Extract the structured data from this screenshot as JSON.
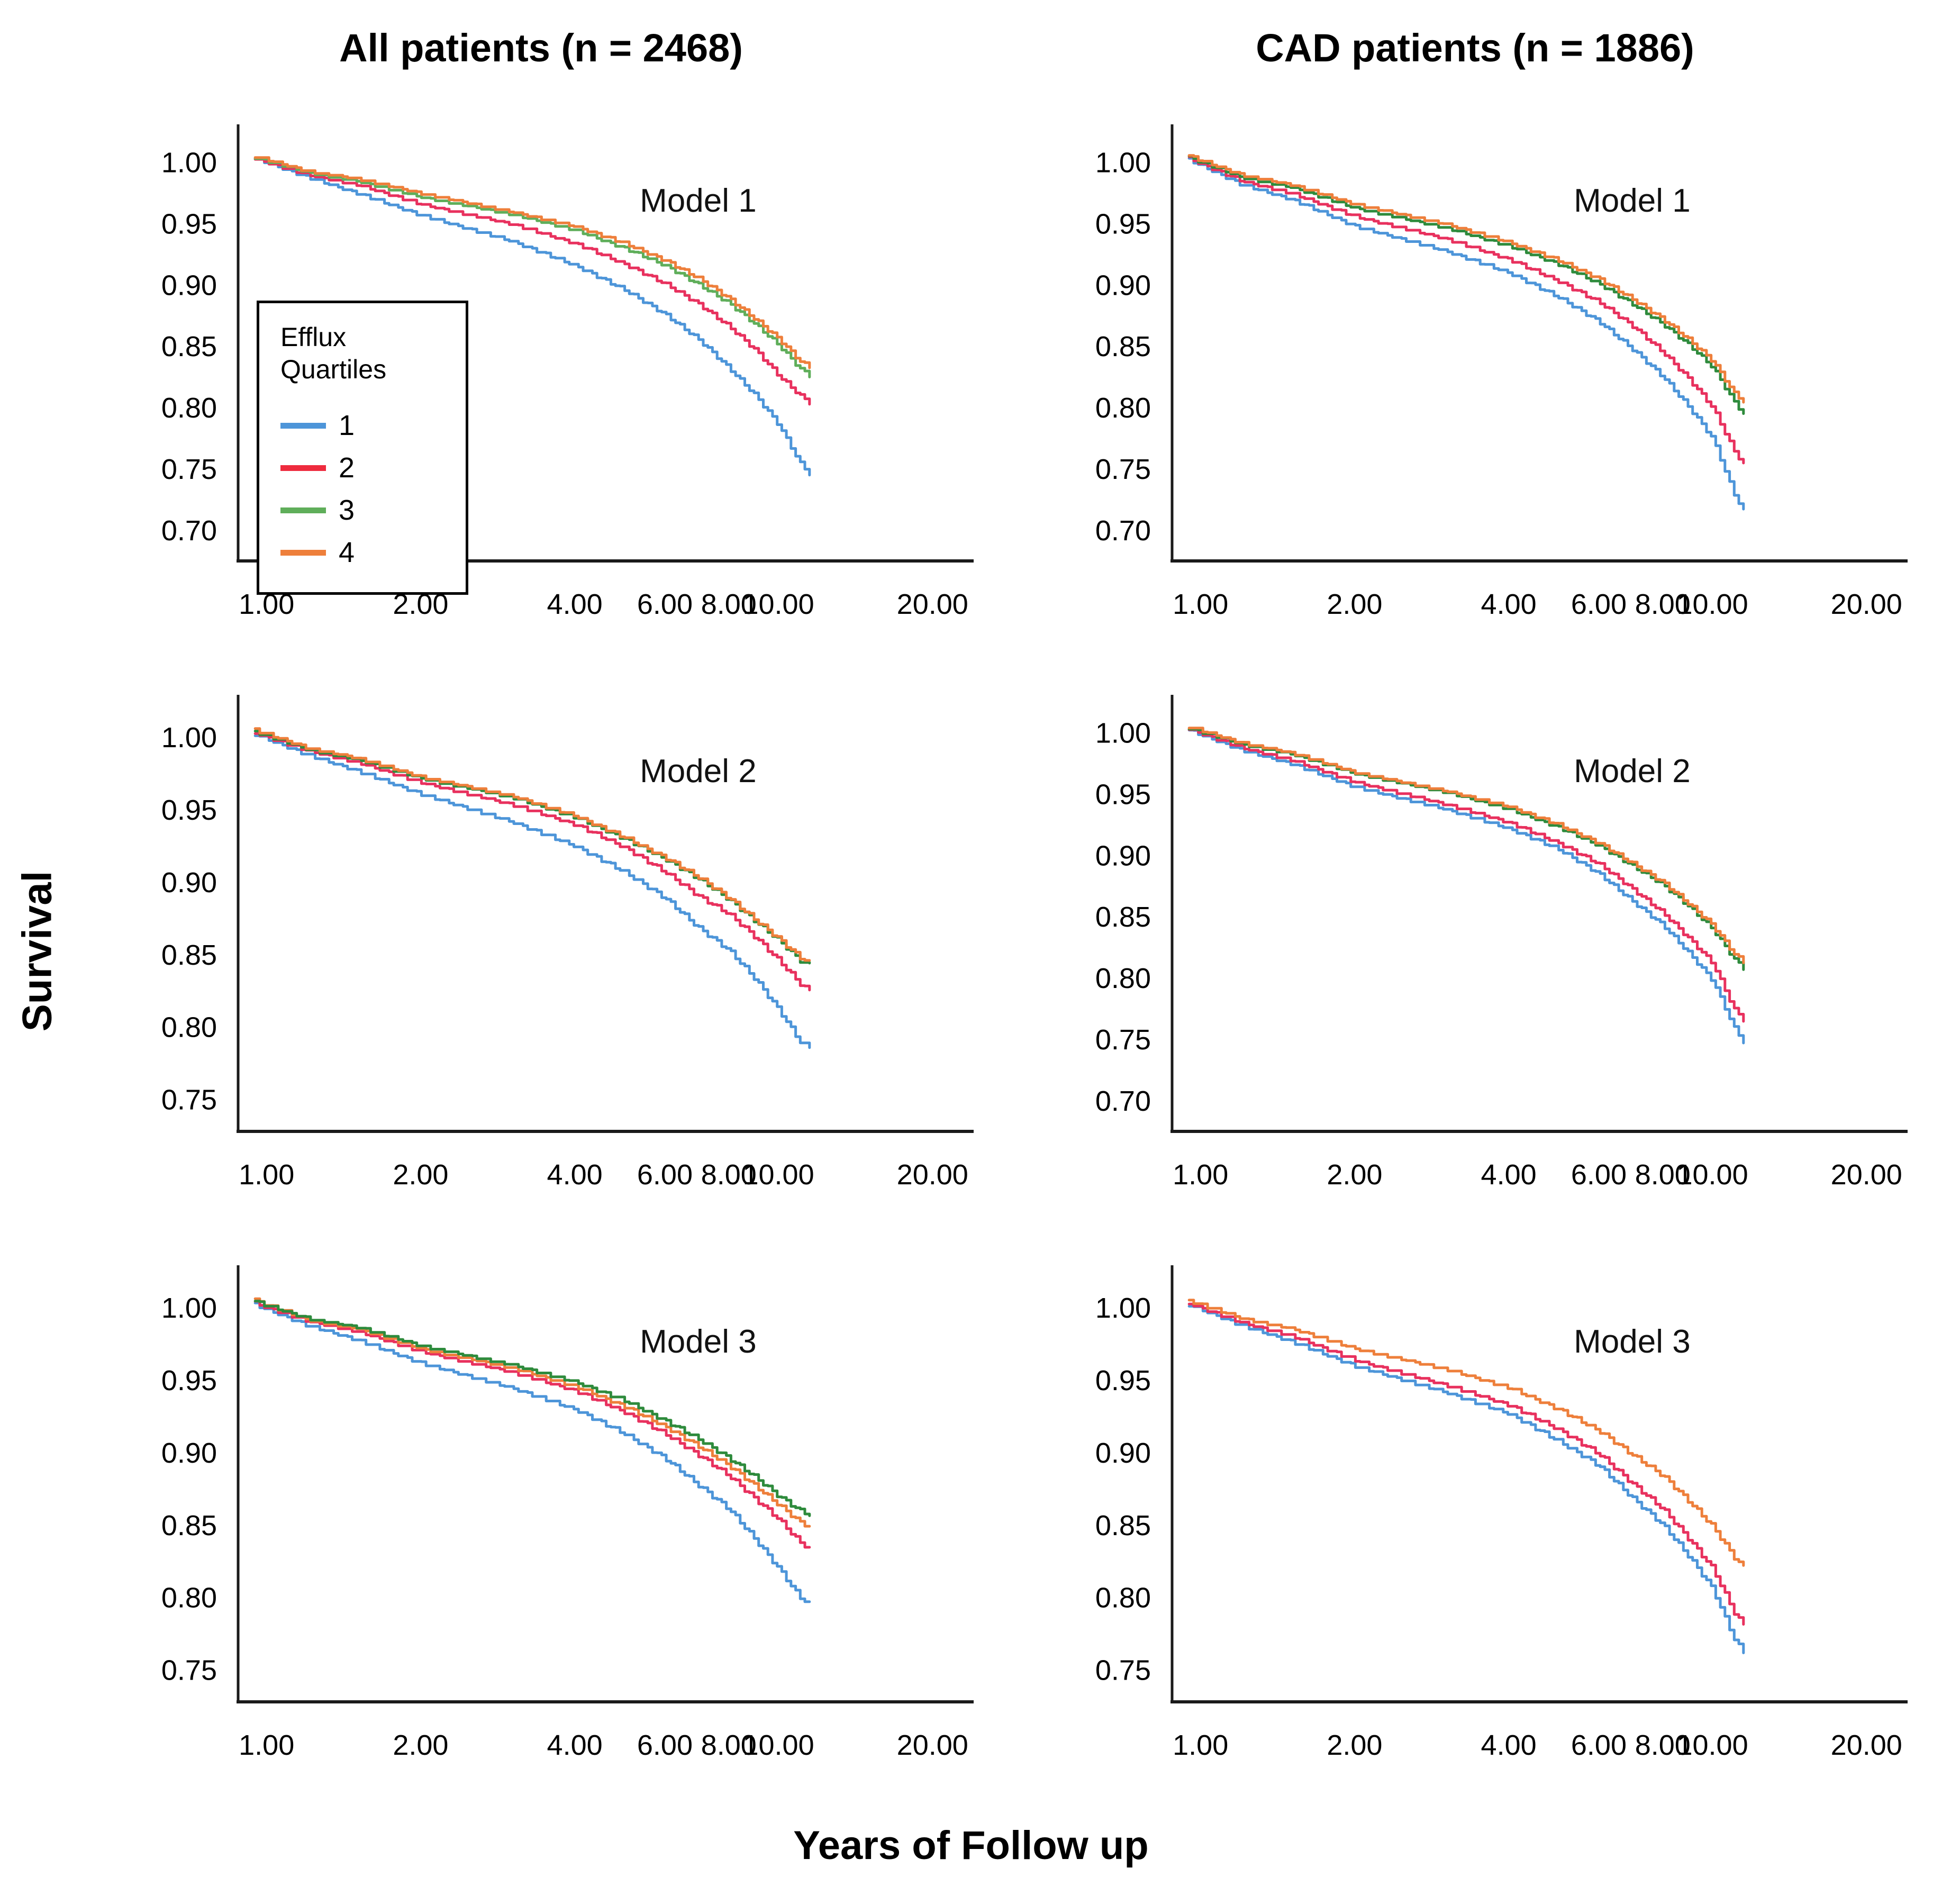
{
  "figure": {
    "columns": [
      "All patients (n = 2468)",
      "CAD patients (n = 1886)"
    ],
    "y_axis_label": "Survival",
    "x_axis_label": "Years of Follow up",
    "legend": {
      "title_line1": "Efflux",
      "title_line2": "Quartiles",
      "items": [
        {
          "label": "1",
          "color": "#4D95D9"
        },
        {
          "label": "2",
          "color": "#EE2B3E"
        },
        {
          "label": "3",
          "color": "#5FAE5A"
        },
        {
          "label": "4",
          "color": "#EE7F3B"
        }
      ]
    }
  },
  "chart_data": [
    {
      "type": "line",
      "xscale": "log",
      "title": "Model 1",
      "population": "All patients (n = 2468)",
      "xlabel": "Years of Follow up",
      "ylabel": "Survival",
      "x": [
        0.95,
        1.2,
        1.5,
        2,
        3,
        4,
        5,
        6,
        7,
        8,
        9,
        10,
        11,
        11.5
      ],
      "x_ticks": [
        1,
        2,
        4,
        6,
        8,
        10,
        20
      ],
      "x_tick_labels": [
        "1.00",
        "2.00",
        "4.00",
        "6.00",
        "8.00",
        "10.00",
        "20.00"
      ],
      "y_ticks": [
        "1.00",
        "0.95",
        "0.90",
        "0.85",
        "0.80",
        "0.75",
        "0.70"
      ],
      "ylim": [
        0.675,
        1.02
      ],
      "series": [
        {
          "id": "q1",
          "name": "Efflux Quartile 1",
          "color": "#4D95D9",
          "values": [
            1.003,
            0.988,
            0.975,
            0.957,
            0.936,
            0.916,
            0.896,
            0.876,
            0.855,
            0.832,
            0.81,
            0.786,
            0.755,
            0.746
          ]
        },
        {
          "id": "q2",
          "name": "Efflux Quartile 2",
          "color": "#E8315E",
          "values": [
            1.003,
            0.99,
            0.982,
            0.966,
            0.95,
            0.934,
            0.917,
            0.901,
            0.884,
            0.866,
            0.847,
            0.826,
            0.81,
            0.804
          ]
        },
        {
          "id": "q3",
          "name": "Efflux Quartile 3",
          "color": "#5FAE5A",
          "values": [
            1.004,
            0.992,
            0.985,
            0.972,
            0.958,
            0.945,
            0.93,
            0.916,
            0.9,
            0.885,
            0.868,
            0.851,
            0.832,
            0.826
          ]
        },
        {
          "id": "q4",
          "name": "Efflux Quartile 4",
          "color": "#EE7F3B",
          "values": [
            1.005,
            0.993,
            0.987,
            0.975,
            0.96,
            0.948,
            0.934,
            0.92,
            0.905,
            0.889,
            0.872,
            0.856,
            0.838,
            0.833
          ]
        }
      ]
    },
    {
      "type": "line",
      "xscale": "log",
      "title": "Model 1",
      "population": "CAD patients (n = 1886)",
      "xlabel": "Years of Follow up",
      "ylabel": "Survival",
      "x": [
        0.95,
        1.2,
        1.5,
        2,
        3,
        4,
        5,
        6,
        7,
        8,
        9,
        10,
        11,
        11.5
      ],
      "x_ticks": [
        1,
        2,
        4,
        6,
        8,
        10,
        20
      ],
      "x_tick_labels": [
        "1.00",
        "2.00",
        "4.00",
        "6.00",
        "8.00",
        "10.00",
        "20.00"
      ],
      "y_ticks": [
        "1.00",
        "0.95",
        "0.90",
        "0.85",
        "0.80",
        "0.75",
        "0.70"
      ],
      "ylim": [
        0.675,
        1.02
      ],
      "series": [
        {
          "id": "q1",
          "name": "Efflux Quartile 1",
          "color": "#4D95D9",
          "values": [
            1.002,
            0.982,
            0.97,
            0.948,
            0.928,
            0.91,
            0.89,
            0.87,
            0.847,
            0.825,
            0.8,
            0.775,
            0.73,
            0.716
          ]
        },
        {
          "id": "q2",
          "name": "Efflux Quartile 2",
          "color": "#E8315E",
          "values": [
            1.003,
            0.985,
            0.975,
            0.956,
            0.938,
            0.921,
            0.903,
            0.886,
            0.866,
            0.845,
            0.823,
            0.8,
            0.765,
            0.754
          ]
        },
        {
          "id": "q3",
          "name": "Efflux Quartile 3",
          "color": "#2E8B3C",
          "values": [
            1.004,
            0.988,
            0.98,
            0.963,
            0.947,
            0.932,
            0.917,
            0.901,
            0.884,
            0.868,
            0.851,
            0.833,
            0.805,
            0.795
          ]
        },
        {
          "id": "q4",
          "name": "Efflux Quartile 4",
          "color": "#EE7F3B",
          "values": [
            1.005,
            0.99,
            0.982,
            0.966,
            0.95,
            0.935,
            0.92,
            0.905,
            0.888,
            0.872,
            0.855,
            0.838,
            0.812,
            0.805
          ]
        }
      ]
    },
    {
      "type": "line",
      "xscale": "log",
      "title": "Model 2",
      "population": "All patients (n = 2468)",
      "xlabel": "Years of Follow up",
      "ylabel": "Survival",
      "x": [
        0.95,
        1.2,
        1.5,
        2,
        3,
        4,
        5,
        6,
        7,
        8,
        9,
        10,
        11,
        11.5
      ],
      "x_ticks": [
        1,
        2,
        4,
        6,
        8,
        10,
        20
      ],
      "x_tick_labels": [
        "1.00",
        "2.00",
        "4.00",
        "6.00",
        "8.00",
        "10.00",
        "20.00"
      ],
      "y_ticks": [
        "1.00",
        "0.95",
        "0.90",
        "0.85",
        "0.80",
        "0.75"
      ],
      "ylim": [
        0.728,
        1.02
      ],
      "series": [
        {
          "id": "q1",
          "name": "Efflux Quartile 1",
          "color": "#4D95D9",
          "values": [
            1.002,
            0.988,
            0.977,
            0.961,
            0.942,
            0.925,
            0.907,
            0.889,
            0.868,
            0.853,
            0.833,
            0.812,
            0.79,
            0.786
          ]
        },
        {
          "id": "q2",
          "name": "Efflux Quartile 2",
          "color": "#E8315E",
          "values": [
            1.003,
            0.991,
            0.983,
            0.969,
            0.954,
            0.94,
            0.924,
            0.907,
            0.89,
            0.878,
            0.862,
            0.846,
            0.83,
            0.825
          ]
        },
        {
          "id": "q3",
          "name": "Efflux Quartile 3",
          "color": "#2E8B3C",
          "values": [
            1.004,
            0.992,
            0.985,
            0.972,
            0.959,
            0.945,
            0.93,
            0.916,
            0.902,
            0.888,
            0.873,
            0.86,
            0.846,
            0.843
          ]
        },
        {
          "id": "q4",
          "name": "Efflux Quartile 4",
          "color": "#EE7F3B",
          "values": [
            1.005,
            0.993,
            0.986,
            0.973,
            0.96,
            0.946,
            0.931,
            0.917,
            0.903,
            0.889,
            0.874,
            0.861,
            0.848,
            0.845
          ]
        }
      ]
    },
    {
      "type": "line",
      "xscale": "log",
      "title": "Model 2",
      "population": "CAD patients (n = 1886)",
      "xlabel": "Years of Follow up",
      "ylabel": "Survival",
      "x": [
        0.95,
        1.2,
        1.5,
        2,
        3,
        4,
        5,
        6,
        7,
        8,
        9,
        10,
        11,
        11.5
      ],
      "x_ticks": [
        1,
        2,
        4,
        6,
        8,
        10,
        20
      ],
      "x_tick_labels": [
        "1.00",
        "2.00",
        "4.00",
        "6.00",
        "8.00",
        "10.00",
        "20.00"
      ],
      "y_ticks": [
        "1.00",
        "0.95",
        "0.90",
        "0.85",
        "0.80",
        "0.75",
        "0.70"
      ],
      "ylim": [
        0.675,
        1.02
      ],
      "series": [
        {
          "id": "q1",
          "name": "Efflux Quartile 1",
          "color": "#4D95D9",
          "values": [
            1.002,
            0.986,
            0.975,
            0.956,
            0.938,
            0.922,
            0.905,
            0.885,
            0.862,
            0.843,
            0.82,
            0.798,
            0.76,
            0.748
          ]
        },
        {
          "id": "q2",
          "name": "Efflux Quartile 2",
          "color": "#E8315E",
          "values": [
            1.003,
            0.988,
            0.978,
            0.96,
            0.942,
            0.927,
            0.91,
            0.893,
            0.872,
            0.853,
            0.832,
            0.812,
            0.775,
            0.766
          ]
        },
        {
          "id": "q3",
          "name": "Efflux Quartile 3",
          "color": "#2E8B3C",
          "values": [
            1.004,
            0.991,
            0.983,
            0.967,
            0.952,
            0.938,
            0.923,
            0.908,
            0.891,
            0.876,
            0.858,
            0.84,
            0.816,
            0.808
          ]
        },
        {
          "id": "q4",
          "name": "Efflux Quartile 4",
          "color": "#EE7F3B",
          "values": [
            1.005,
            0.992,
            0.984,
            0.968,
            0.953,
            0.94,
            0.925,
            0.91,
            0.893,
            0.878,
            0.86,
            0.843,
            0.82,
            0.813
          ]
        }
      ]
    },
    {
      "type": "line",
      "xscale": "log",
      "title": "Model 3",
      "population": "All patients (n = 2468)",
      "xlabel": "Years of Follow up",
      "ylabel": "Survival",
      "x": [
        0.95,
        1.2,
        1.5,
        2,
        3,
        4,
        5,
        6,
        7,
        8,
        9,
        10,
        11,
        11.5
      ],
      "x_ticks": [
        1,
        2,
        4,
        6,
        8,
        10,
        20
      ],
      "x_tick_labels": [
        "1.00",
        "2.00",
        "4.00",
        "6.00",
        "8.00",
        "10.00",
        "20.00"
      ],
      "y_ticks": [
        "1.00",
        "0.95",
        "0.90",
        "0.85",
        "0.80",
        "0.75"
      ],
      "ylim": [
        0.728,
        1.02
      ],
      "series": [
        {
          "id": "q1",
          "name": "Efflux Quartile 1",
          "color": "#4D95D9",
          "values": [
            1.002,
            0.988,
            0.978,
            0.962,
            0.945,
            0.93,
            0.913,
            0.896,
            0.877,
            0.861,
            0.84,
            0.82,
            0.8,
            0.796
          ]
        },
        {
          "id": "q2",
          "name": "Efflux Quartile 2",
          "color": "#E8315E",
          "values": [
            1.003,
            0.991,
            0.984,
            0.97,
            0.956,
            0.943,
            0.928,
            0.913,
            0.898,
            0.884,
            0.868,
            0.854,
            0.838,
            0.834
          ]
        },
        {
          "id": "q4",
          "name": "Efflux Quartile 4",
          "color": "#EE7F3B",
          "values": [
            1.005,
            0.992,
            0.986,
            0.972,
            0.959,
            0.946,
            0.932,
            0.918,
            0.904,
            0.891,
            0.877,
            0.864,
            0.852,
            0.849
          ]
        },
        {
          "id": "q3",
          "name": "Efflux Quartile 3",
          "color": "#2E8B3C",
          "values": [
            1.004,
            0.993,
            0.987,
            0.974,
            0.961,
            0.949,
            0.936,
            0.922,
            0.909,
            0.896,
            0.883,
            0.87,
            0.86,
            0.857
          ]
        }
      ]
    },
    {
      "type": "line",
      "xscale": "log",
      "title": "Model 3",
      "population": "CAD patients (n = 1886)",
      "xlabel": "Years of Follow up",
      "ylabel": "Survival",
      "x": [
        0.95,
        1.2,
        1.5,
        2,
        3,
        4,
        5,
        6,
        7,
        8,
        9,
        10,
        11,
        11.5
      ],
      "x_ticks": [
        1,
        2,
        4,
        6,
        8,
        10,
        20
      ],
      "x_tick_labels": [
        "1.00",
        "2.00",
        "4.00",
        "6.00",
        "8.00",
        "10.00",
        "20.00"
      ],
      "y_ticks": [
        "1.00",
        "0.95",
        "0.90",
        "0.85",
        "0.80",
        "0.75"
      ],
      "ylim": [
        0.728,
        1.02
      ],
      "series": [
        {
          "id": "q1",
          "name": "Efflux Quartile 1",
          "color": "#4D95D9",
          "values": [
            1.002,
            0.988,
            0.977,
            0.96,
            0.942,
            0.927,
            0.908,
            0.891,
            0.868,
            0.85,
            0.828,
            0.806,
            0.772,
            0.762
          ]
        },
        {
          "id": "q2",
          "name": "Efflux Quartile 2",
          "color": "#E8315E",
          "values": [
            1.003,
            0.99,
            0.981,
            0.964,
            0.947,
            0.933,
            0.916,
            0.899,
            0.878,
            0.861,
            0.84,
            0.82,
            0.79,
            0.781
          ]
        },
        {
          "id": "q4",
          "name": "Efflux Quartile 4",
          "color": "#EE7F3B",
          "values": [
            1.005,
            0.993,
            0.986,
            0.972,
            0.958,
            0.945,
            0.93,
            0.915,
            0.898,
            0.884,
            0.866,
            0.849,
            0.828,
            0.821
          ]
        }
      ]
    }
  ]
}
